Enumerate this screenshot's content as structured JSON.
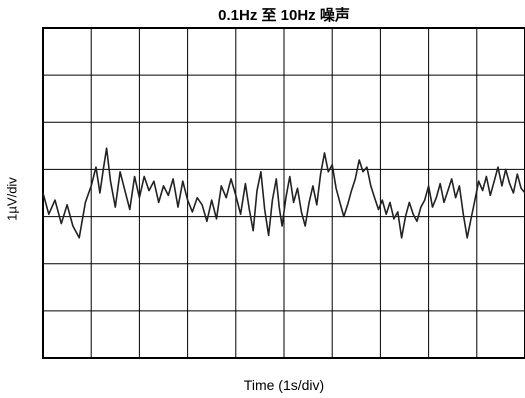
{
  "chart_data": {
    "type": "line",
    "title": "0.1Hz 至 10Hz 噪声",
    "xlabel": "Time (1s/div)",
    "ylabel": "1µV/div",
    "grid": true,
    "xlim": [
      0,
      10
    ],
    "ylim": [
      -3.5,
      3.5
    ],
    "x_divisions": 10,
    "y_divisions": 7,
    "series": [
      {
        "values": [
          [
            0.0,
            0.0
          ],
          [
            0.12,
            -0.45
          ],
          [
            0.25,
            -0.15
          ],
          [
            0.38,
            -0.65
          ],
          [
            0.5,
            -0.25
          ],
          [
            0.62,
            -0.7
          ],
          [
            0.75,
            -0.95
          ],
          [
            0.88,
            -0.2
          ],
          [
            1.0,
            0.15
          ],
          [
            1.1,
            0.55
          ],
          [
            1.18,
            0.0
          ],
          [
            1.25,
            0.5
          ],
          [
            1.32,
            0.95
          ],
          [
            1.4,
            0.25
          ],
          [
            1.5,
            -0.3
          ],
          [
            1.6,
            0.45
          ],
          [
            1.7,
            0.05
          ],
          [
            1.8,
            -0.35
          ],
          [
            1.9,
            0.35
          ],
          [
            2.0,
            -0.1
          ],
          [
            2.1,
            0.35
          ],
          [
            2.2,
            0.05
          ],
          [
            2.3,
            0.25
          ],
          [
            2.4,
            -0.2
          ],
          [
            2.5,
            0.15
          ],
          [
            2.6,
            -0.05
          ],
          [
            2.7,
            0.3
          ],
          [
            2.8,
            -0.3
          ],
          [
            2.9,
            0.25
          ],
          [
            3.0,
            -0.15
          ],
          [
            3.1,
            -0.4
          ],
          [
            3.2,
            -0.1
          ],
          [
            3.3,
            -0.25
          ],
          [
            3.4,
            -0.6
          ],
          [
            3.5,
            -0.15
          ],
          [
            3.6,
            -0.55
          ],
          [
            3.7,
            0.15
          ],
          [
            3.8,
            -0.1
          ],
          [
            3.9,
            0.3
          ],
          [
            4.0,
            -0.05
          ],
          [
            4.1,
            -0.45
          ],
          [
            4.2,
            0.2
          ],
          [
            4.28,
            -0.35
          ],
          [
            4.36,
            -0.8
          ],
          [
            4.44,
            0.05
          ],
          [
            4.52,
            0.45
          ],
          [
            4.6,
            -0.35
          ],
          [
            4.68,
            -0.9
          ],
          [
            4.76,
            -0.15
          ],
          [
            4.84,
            0.3
          ],
          [
            4.9,
            -0.3
          ],
          [
            4.96,
            -0.7
          ],
          [
            5.04,
            -0.1
          ],
          [
            5.12,
            0.35
          ],
          [
            5.2,
            -0.2
          ],
          [
            5.28,
            0.1
          ],
          [
            5.36,
            -0.4
          ],
          [
            5.44,
            -0.7
          ],
          [
            5.52,
            -0.2
          ],
          [
            5.6,
            0.15
          ],
          [
            5.68,
            -0.25
          ],
          [
            5.76,
            0.4
          ],
          [
            5.84,
            0.85
          ],
          [
            5.92,
            0.45
          ],
          [
            6.0,
            0.6
          ],
          [
            6.08,
            0.1
          ],
          [
            6.16,
            -0.2
          ],
          [
            6.24,
            -0.5
          ],
          [
            6.32,
            -0.25
          ],
          [
            6.4,
            0.05
          ],
          [
            6.48,
            0.3
          ],
          [
            6.56,
            0.7
          ],
          [
            6.64,
            0.45
          ],
          [
            6.72,
            0.55
          ],
          [
            6.8,
            0.15
          ],
          [
            6.88,
            -0.1
          ],
          [
            6.96,
            -0.35
          ],
          [
            7.04,
            -0.15
          ],
          [
            7.12,
            -0.45
          ],
          [
            7.2,
            -0.2
          ],
          [
            7.28,
            -0.55
          ],
          [
            7.36,
            -0.4
          ],
          [
            7.44,
            -0.95
          ],
          [
            7.52,
            -0.5
          ],
          [
            7.6,
            -0.2
          ],
          [
            7.68,
            -0.45
          ],
          [
            7.76,
            -0.6
          ],
          [
            7.84,
            -0.3
          ],
          [
            7.92,
            -0.15
          ],
          [
            8.0,
            0.15
          ],
          [
            8.08,
            -0.3
          ],
          [
            8.16,
            -0.1
          ],
          [
            8.24,
            0.2
          ],
          [
            8.32,
            -0.2
          ],
          [
            8.4,
            0.05
          ],
          [
            8.48,
            0.3
          ],
          [
            8.56,
            -0.1
          ],
          [
            8.64,
            0.15
          ],
          [
            8.72,
            -0.45
          ],
          [
            8.8,
            -0.95
          ],
          [
            8.88,
            -0.55
          ],
          [
            8.96,
            -0.15
          ],
          [
            9.04,
            0.25
          ],
          [
            9.12,
            0.05
          ],
          [
            9.2,
            0.35
          ],
          [
            9.28,
            -0.05
          ],
          [
            9.36,
            0.25
          ],
          [
            9.44,
            0.55
          ],
          [
            9.52,
            0.15
          ],
          [
            9.6,
            0.5
          ],
          [
            9.68,
            0.2
          ],
          [
            9.76,
            0.0
          ],
          [
            9.84,
            0.4
          ],
          [
            9.92,
            0.1
          ],
          [
            10.0,
            0.0
          ]
        ]
      }
    ]
  }
}
